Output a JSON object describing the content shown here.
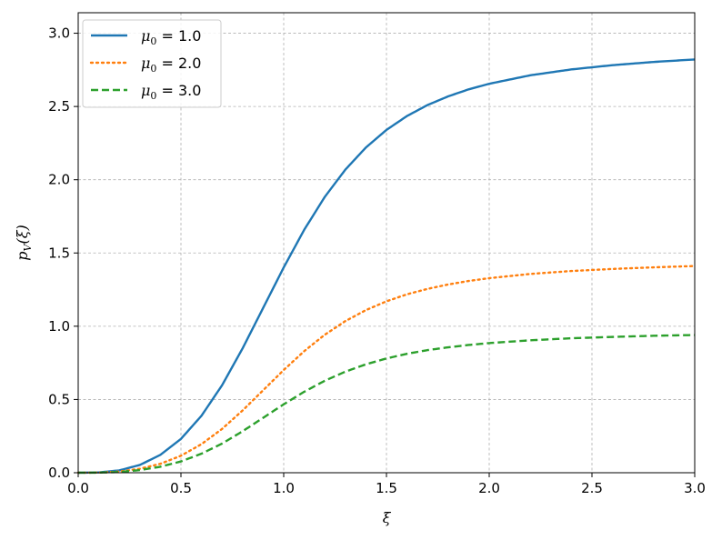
{
  "chart_data": {
    "type": "line",
    "xlabel": "ξ",
    "ylabel": "p_V(ξ)",
    "xlim": [
      0,
      3
    ],
    "ylim": [
      0,
      3.14
    ],
    "xticks": [
      0.0,
      0.5,
      1.0,
      1.5,
      2.0,
      2.5,
      3.0
    ],
    "xtick_labels": [
      "0.0",
      "0.5",
      "1.0",
      "1.5",
      "2.0",
      "2.5",
      "3.0"
    ],
    "yticks": [
      0.0,
      0.5,
      1.0,
      1.5,
      2.0,
      2.5,
      3.0
    ],
    "ytick_labels": [
      "0.0",
      "0.5",
      "1.0",
      "1.5",
      "2.0",
      "2.5",
      "3.0"
    ],
    "grid": true,
    "legend_position": "top-left",
    "series": [
      {
        "name": "μ0 = 1.0",
        "mu0": 1.0,
        "color": "#1f77b4",
        "style": "solid",
        "x": [
          0.0,
          0.1,
          0.2,
          0.3,
          0.4,
          0.5,
          0.6,
          0.7,
          0.8,
          0.9,
          1.0,
          1.1,
          1.2,
          1.3,
          1.4,
          1.5,
          1.6,
          1.7,
          1.8,
          1.9,
          2.0,
          2.2,
          2.4,
          2.6,
          2.8,
          3.0
        ],
        "y": [
          0.0,
          0.002,
          0.016,
          0.053,
          0.122,
          0.231,
          0.389,
          0.597,
          0.849,
          1.125,
          1.401,
          1.659,
          1.883,
          2.069,
          2.22,
          2.34,
          2.435,
          2.51,
          2.569,
          2.617,
          2.655,
          2.713,
          2.753,
          2.782,
          2.804,
          2.821
        ]
      },
      {
        "name": "μ0 = 2.0",
        "mu0": 2.0,
        "color": "#ff7f0e",
        "style": "dotted",
        "x": [
          0.0,
          0.1,
          0.2,
          0.3,
          0.4,
          0.5,
          0.6,
          0.7,
          0.8,
          0.9,
          1.0,
          1.1,
          1.2,
          1.3,
          1.4,
          1.5,
          1.6,
          1.7,
          1.8,
          1.9,
          2.0,
          2.2,
          2.4,
          2.6,
          2.8,
          3.0
        ],
        "y": [
          0.0,
          0.001,
          0.008,
          0.027,
          0.061,
          0.116,
          0.195,
          0.299,
          0.425,
          0.563,
          0.701,
          0.83,
          0.942,
          1.035,
          1.11,
          1.17,
          1.218,
          1.255,
          1.285,
          1.309,
          1.328,
          1.357,
          1.377,
          1.391,
          1.402,
          1.411
        ]
      },
      {
        "name": "μ0 = 3.0",
        "mu0": 3.0,
        "color": "#2ca02c",
        "style": "dashed",
        "x": [
          0.0,
          0.1,
          0.2,
          0.3,
          0.4,
          0.5,
          0.6,
          0.7,
          0.8,
          0.9,
          1.0,
          1.1,
          1.2,
          1.3,
          1.4,
          1.5,
          1.6,
          1.7,
          1.8,
          1.9,
          2.0,
          2.2,
          2.4,
          2.6,
          2.8,
          3.0
        ],
        "y": [
          0.0,
          0.001,
          0.005,
          0.018,
          0.041,
          0.077,
          0.13,
          0.199,
          0.283,
          0.375,
          0.467,
          0.553,
          0.628,
          0.69,
          0.74,
          0.78,
          0.812,
          0.837,
          0.856,
          0.872,
          0.885,
          0.904,
          0.918,
          0.927,
          0.935,
          0.94
        ]
      }
    ]
  },
  "legend": [
    {
      "var": "μ",
      "sub": "0",
      "eq": " = ",
      "val": "1.0"
    },
    {
      "var": "μ",
      "sub": "0",
      "eq": " = ",
      "val": "2.0"
    },
    {
      "var": "μ",
      "sub": "0",
      "eq": " = ",
      "val": "3.0"
    }
  ],
  "ylabel_parts": {
    "p": "p",
    "sub": "V",
    "rest": "(ξ)"
  }
}
